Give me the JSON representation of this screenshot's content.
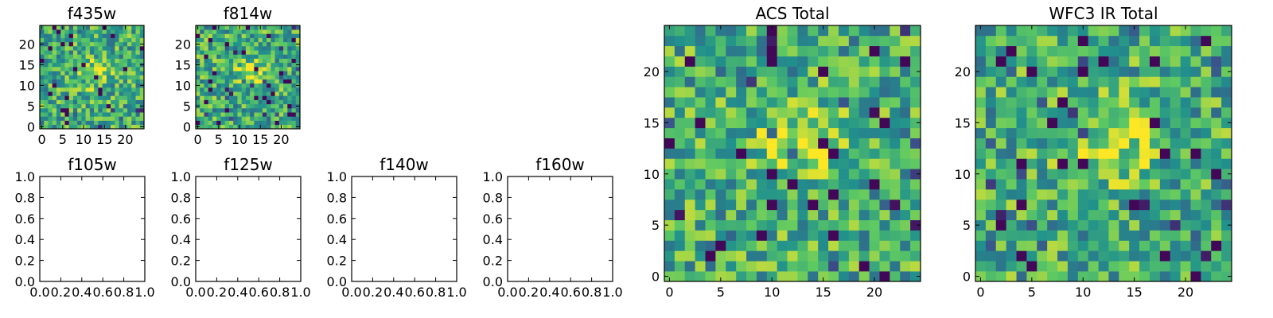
{
  "figure": {
    "colormap": [
      "#440154",
      "#3b528b",
      "#21918c",
      "#5ec962",
      "#fde725"
    ]
  },
  "chart_data": [
    {
      "id": "f435w",
      "type": "heatmap",
      "title": "f435w",
      "xlim": [
        -0.5,
        24.5
      ],
      "ylim": [
        -0.5,
        24.5
      ],
      "grid": false,
      "xticks": [
        0,
        5,
        10,
        15,
        20
      ],
      "yticks": [
        0,
        5,
        10,
        15,
        20
      ],
      "pattern": "noise",
      "values": []
    },
    {
      "id": "f814w",
      "type": "heatmap",
      "title": "f814w",
      "xlim": [
        -0.5,
        24.5
      ],
      "ylim": [
        -0.5,
        24.5
      ],
      "grid": false,
      "xticks": [
        0,
        5,
        10,
        15,
        20
      ],
      "yticks": [
        0,
        5,
        10,
        15,
        20
      ],
      "pattern": "noise",
      "values": []
    },
    {
      "id": "f105w",
      "type": "scatter",
      "title": "f105w",
      "xlim": [
        0,
        1
      ],
      "ylim": [
        0,
        1
      ],
      "grid": false,
      "xticks": [
        0.0,
        0.2,
        0.4,
        0.6,
        0.8,
        1.0
      ],
      "yticks": [
        0.0,
        0.2,
        0.4,
        0.6,
        0.8,
        1.0
      ],
      "series": []
    },
    {
      "id": "f125w",
      "type": "scatter",
      "title": "f125w",
      "xlim": [
        0,
        1
      ],
      "ylim": [
        0,
        1
      ],
      "grid": false,
      "xticks": [
        0.0,
        0.2,
        0.4,
        0.6,
        0.8,
        1.0
      ],
      "yticks": [
        0.0,
        0.2,
        0.4,
        0.6,
        0.8,
        1.0
      ],
      "series": []
    },
    {
      "id": "f140w",
      "type": "scatter",
      "title": "f140w",
      "xlim": [
        0,
        1
      ],
      "ylim": [
        0,
        1
      ],
      "grid": false,
      "xticks": [
        0.0,
        0.2,
        0.4,
        0.6,
        0.8,
        1.0
      ],
      "yticks": [
        0.0,
        0.2,
        0.4,
        0.6,
        0.8,
        1.0
      ],
      "series": []
    },
    {
      "id": "f160w",
      "type": "scatter",
      "title": "f160w",
      "xlim": [
        0,
        1
      ],
      "ylim": [
        0,
        1
      ],
      "grid": false,
      "xticks": [
        0.0,
        0.2,
        0.4,
        0.6,
        0.8,
        1.0
      ],
      "yticks": [
        0.0,
        0.2,
        0.4,
        0.6,
        0.8,
        1.0
      ],
      "series": []
    },
    {
      "id": "acs-total",
      "type": "heatmap",
      "title": "ACS Total",
      "xlim": [
        -0.5,
        24.5
      ],
      "ylim": [
        -0.5,
        24.5
      ],
      "grid": false,
      "xticks": [
        0,
        5,
        10,
        15,
        20
      ],
      "yticks": [
        0,
        5,
        10,
        15,
        20
      ],
      "pattern": "noise",
      "values": []
    },
    {
      "id": "wfc3-ir-total",
      "type": "heatmap",
      "title": "WFC3 IR Total",
      "xlim": [
        -0.5,
        24.5
      ],
      "ylim": [
        -0.5,
        24.5
      ],
      "grid": false,
      "xticks": [
        0,
        5,
        10,
        15,
        20
      ],
      "yticks": [
        0,
        5,
        10,
        15,
        20
      ],
      "pattern": "noise",
      "values": []
    }
  ]
}
